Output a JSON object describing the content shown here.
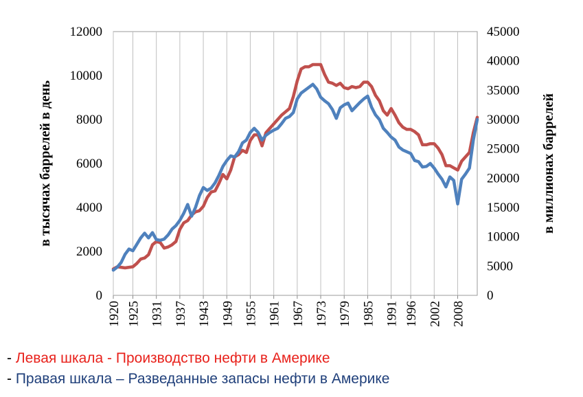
{
  "chart_data": {
    "type": "line",
    "y_left": {
      "label": "в тысячах баррелей в день",
      "ticks": [
        "0",
        "2000",
        "4000",
        "6000",
        "8000",
        "10000",
        "12000"
      ],
      "range": [
        0,
        12000
      ]
    },
    "y_right": {
      "label": "в миллионах баррелей",
      "ticks": [
        "0",
        "5000",
        "10000",
        "15000",
        "20000",
        "25000",
        "30000",
        "35000",
        "40000",
        "45000"
      ],
      "range": [
        0,
        45000
      ]
    },
    "x_ticks": [
      "1920",
      "1925",
      "1931",
      "1937",
      "1943",
      "1949",
      "1955",
      "1961",
      "1967",
      "1973",
      "1979",
      "1985",
      "1991",
      "1996",
      "2002",
      "2008"
    ],
    "x_range": [
      1920,
      2013
    ],
    "grid": "vertical",
    "series": [
      {
        "axis": "left",
        "color": "#c0504d",
        "points": [
          [
            1920,
            1200
          ],
          [
            1921,
            1300
          ],
          [
            1923,
            1250
          ],
          [
            1925,
            1300
          ],
          [
            1926,
            1450
          ],
          [
            1927,
            1650
          ],
          [
            1928,
            1700
          ],
          [
            1929,
            1850
          ],
          [
            1930,
            2300
          ],
          [
            1931,
            2450
          ],
          [
            1932,
            2400
          ],
          [
            1933,
            2150
          ],
          [
            1934,
            2200
          ],
          [
            1935,
            2300
          ],
          [
            1936,
            2450
          ],
          [
            1937,
            3000
          ],
          [
            1938,
            3300
          ],
          [
            1939,
            3400
          ],
          [
            1940,
            3650
          ],
          [
            1941,
            3800
          ],
          [
            1942,
            3850
          ],
          [
            1943,
            4050
          ],
          [
            1944,
            4450
          ],
          [
            1945,
            4700
          ],
          [
            1946,
            4750
          ],
          [
            1947,
            5100
          ],
          [
            1948,
            5500
          ],
          [
            1949,
            5300
          ],
          [
            1950,
            5700
          ],
          [
            1951,
            6300
          ],
          [
            1952,
            6400
          ],
          [
            1953,
            6600
          ],
          [
            1954,
            6500
          ],
          [
            1955,
            7050
          ],
          [
            1956,
            7300
          ],
          [
            1957,
            7300
          ],
          [
            1958,
            6800
          ],
          [
            1959,
            7400
          ],
          [
            1960,
            7600
          ],
          [
            1961,
            7800
          ],
          [
            1962,
            8000
          ],
          [
            1963,
            8200
          ],
          [
            1964,
            8350
          ],
          [
            1965,
            8500
          ],
          [
            1966,
            9050
          ],
          [
            1967,
            9750
          ],
          [
            1968,
            10300
          ],
          [
            1969,
            10400
          ],
          [
            1970,
            10400
          ],
          [
            1971,
            10500
          ],
          [
            1972,
            10500
          ],
          [
            1973,
            10500
          ],
          [
            1974,
            10050
          ],
          [
            1975,
            9700
          ],
          [
            1976,
            9650
          ],
          [
            1977,
            9550
          ],
          [
            1978,
            9650
          ],
          [
            1979,
            9450
          ],
          [
            1980,
            9400
          ],
          [
            1981,
            9500
          ],
          [
            1982,
            9450
          ],
          [
            1983,
            9500
          ],
          [
            1984,
            9700
          ],
          [
            1985,
            9700
          ],
          [
            1986,
            9500
          ],
          [
            1987,
            9100
          ],
          [
            1988,
            8850
          ],
          [
            1989,
            8400
          ],
          [
            1990,
            8200
          ],
          [
            1991,
            8500
          ],
          [
            1992,
            8200
          ],
          [
            1993,
            7850
          ],
          [
            1994,
            7650
          ],
          [
            1995,
            7550
          ],
          [
            1996,
            7550
          ],
          [
            1997,
            7450
          ],
          [
            1998,
            7300
          ],
          [
            1999,
            6850
          ],
          [
            2000,
            6850
          ],
          [
            2001,
            6900
          ],
          [
            2002,
            6900
          ],
          [
            2003,
            6700
          ],
          [
            2004,
            6400
          ],
          [
            2005,
            5900
          ],
          [
            2006,
            5900
          ],
          [
            2007,
            5800
          ],
          [
            2008,
            5700
          ],
          [
            2009,
            6100
          ],
          [
            2010,
            6300
          ],
          [
            2011,
            6500
          ],
          [
            2012,
            7400
          ],
          [
            2013,
            8100
          ]
        ]
      },
      {
        "axis": "right",
        "color": "#4f81bd",
        "points": [
          [
            1920,
            4300
          ],
          [
            1921,
            4800
          ],
          [
            1922,
            5600
          ],
          [
            1923,
            7000
          ],
          [
            1924,
            7900
          ],
          [
            1925,
            7600
          ],
          [
            1926,
            8700
          ],
          [
            1927,
            9800
          ],
          [
            1928,
            10600
          ],
          [
            1929,
            9800
          ],
          [
            1930,
            10700
          ],
          [
            1931,
            9500
          ],
          [
            1932,
            9400
          ],
          [
            1933,
            9600
          ],
          [
            1934,
            10300
          ],
          [
            1935,
            11300
          ],
          [
            1936,
            11900
          ],
          [
            1937,
            12800
          ],
          [
            1938,
            14000
          ],
          [
            1939,
            15500
          ],
          [
            1940,
            13500
          ],
          [
            1941,
            15000
          ],
          [
            1942,
            17000
          ],
          [
            1943,
            18400
          ],
          [
            1944,
            17900
          ],
          [
            1945,
            18300
          ],
          [
            1946,
            19200
          ],
          [
            1947,
            20500
          ],
          [
            1948,
            22000
          ],
          [
            1949,
            23000
          ],
          [
            1950,
            23800
          ],
          [
            1951,
            23600
          ],
          [
            1952,
            24500
          ],
          [
            1953,
            26000
          ],
          [
            1954,
            26500
          ],
          [
            1955,
            27800
          ],
          [
            1956,
            28500
          ],
          [
            1957,
            27800
          ],
          [
            1958,
            26500
          ],
          [
            1959,
            27300
          ],
          [
            1960,
            27800
          ],
          [
            1961,
            28200
          ],
          [
            1962,
            28500
          ],
          [
            1963,
            29300
          ],
          [
            1964,
            30200
          ],
          [
            1965,
            30500
          ],
          [
            1966,
            31200
          ],
          [
            1967,
            33500
          ],
          [
            1968,
            34500
          ],
          [
            1969,
            35000
          ],
          [
            1970,
            35500
          ],
          [
            1971,
            36000
          ],
          [
            1972,
            35200
          ],
          [
            1973,
            33800
          ],
          [
            1974,
            33200
          ],
          [
            1975,
            32700
          ],
          [
            1976,
            31700
          ],
          [
            1977,
            30200
          ],
          [
            1978,
            32000
          ],
          [
            1979,
            32500
          ],
          [
            1980,
            32800
          ],
          [
            1981,
            31500
          ],
          [
            1982,
            32200
          ],
          [
            1983,
            32900
          ],
          [
            1984,
            33500
          ],
          [
            1985,
            34000
          ],
          [
            1986,
            32100
          ],
          [
            1987,
            30800
          ],
          [
            1988,
            30000
          ],
          [
            1989,
            28500
          ],
          [
            1990,
            27800
          ],
          [
            1991,
            27000
          ],
          [
            1992,
            26500
          ],
          [
            1993,
            25300
          ],
          [
            1994,
            24800
          ],
          [
            1995,
            24500
          ],
          [
            1996,
            24200
          ],
          [
            1997,
            23000
          ],
          [
            1998,
            22800
          ],
          [
            1999,
            21900
          ],
          [
            2000,
            22000
          ],
          [
            2001,
            22500
          ],
          [
            2002,
            21700
          ],
          [
            2003,
            20700
          ],
          [
            2004,
            19800
          ],
          [
            2005,
            18500
          ],
          [
            2006,
            20200
          ],
          [
            2007,
            19600
          ],
          [
            2008,
            15600
          ],
          [
            2009,
            19800
          ],
          [
            2010,
            20700
          ],
          [
            2011,
            21700
          ],
          [
            2012,
            26500
          ],
          [
            2013,
            30000
          ]
        ]
      }
    ]
  },
  "legend": [
    {
      "dash": "- ",
      "text": "Левая шкала - Производство нефти в Америке",
      "color": "#e8211b"
    },
    {
      "dash": "- ",
      "text": "Правая шкала – Разведанные запасы нефти в Америке",
      "color": "#1f3f7a"
    }
  ]
}
